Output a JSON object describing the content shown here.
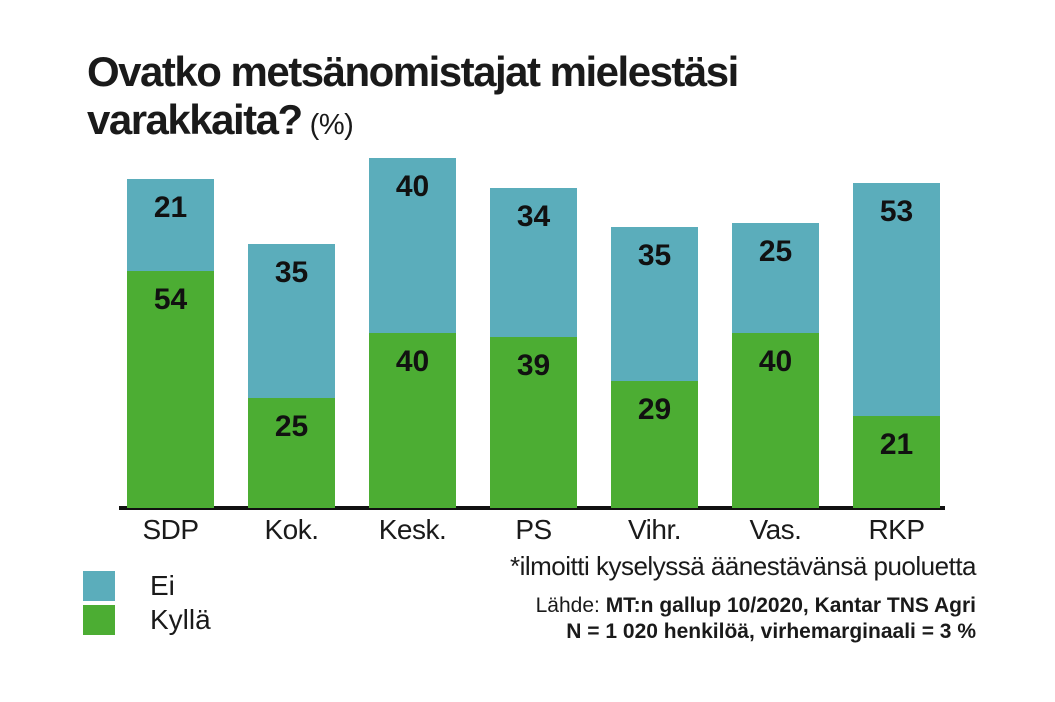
{
  "title": {
    "line1": "Ovatko metsänomistajat mielestäsi",
    "line2": "varakkaita?",
    "unit": "(%)"
  },
  "legend": [
    {
      "label": "Ei",
      "color": "#5BADBB"
    },
    {
      "label": "Kyllä",
      "color": "#4CAD33"
    }
  ],
  "footnote": {
    "note": "*ilmoitti kyselyssä äänestävänsä puoluetta",
    "source_prefix": "Lähde: ",
    "source_bold": "MT:n gallup 10/2020, Kantar TNS Agri",
    "sample_bold": "N = 1 020 henkilöä, virhemarginaali = 3 %"
  },
  "chart_data": {
    "type": "bar",
    "stacked": true,
    "title": "Ovatko metsänomistajat mielestäsi varakkaita? (%)",
    "categories": [
      "SDP",
      "Kok.",
      "Kesk.",
      "PS",
      "Vihr.",
      "Vas.",
      "RKP"
    ],
    "series": [
      {
        "name": "Ei",
        "color": "#5BADBB",
        "values": [
          21,
          35,
          40,
          34,
          35,
          25,
          53
        ]
      },
      {
        "name": "Kyllä",
        "color": "#4CAD33",
        "values": [
          54,
          25,
          40,
          39,
          29,
          40,
          21
        ]
      }
    ],
    "value_labels": true,
    "unit": "%",
    "axes": "category x-axis only, no y-axis, no gridlines",
    "legend_position": "bottom-left"
  }
}
